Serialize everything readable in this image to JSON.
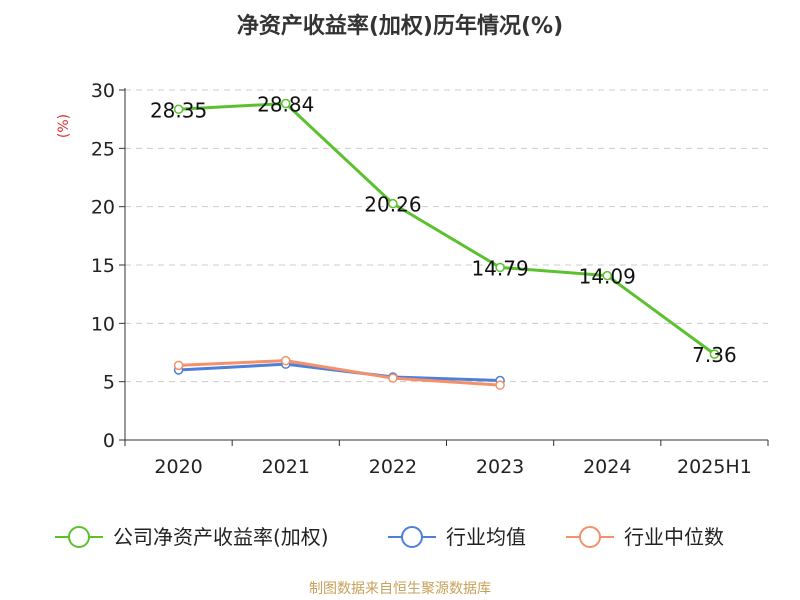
{
  "title": "净资产收益率(加权)历年情况(%)",
  "source": "制图数据来自恒生聚源数据库",
  "colors": {
    "company": "#5cc12e",
    "industry_avg": "#4f7fd8",
    "industry_median": "#f4916a"
  },
  "chart_data": {
    "type": "line",
    "title": "净资产收益率(加权)历年情况(%)",
    "ylabel": "(%)",
    "xlabel": "",
    "ylim": [
      0,
      30
    ],
    "yticks": [
      0,
      5,
      10,
      15,
      20,
      25,
      30
    ],
    "categories": [
      "2020",
      "2021",
      "2022",
      "2023",
      "2024",
      "2025H1"
    ],
    "grid": true,
    "legend_position": "bottom",
    "series": [
      {
        "name": "公司净资产收益率(加权)",
        "color": "#5cc12e",
        "values": [
          28.35,
          28.84,
          20.26,
          14.79,
          14.09,
          7.36
        ],
        "labels": [
          "28.35",
          "28.84",
          "20.26",
          "14.79",
          "14.09",
          "7.36"
        ]
      },
      {
        "name": "行业均值",
        "color": "#4f7fd8",
        "values": [
          6.0,
          6.5,
          5.4,
          5.1,
          null,
          null
        ]
      },
      {
        "name": "行业中位数",
        "color": "#f4916a",
        "values": [
          6.4,
          6.8,
          5.3,
          4.7,
          null,
          null
        ]
      }
    ]
  }
}
